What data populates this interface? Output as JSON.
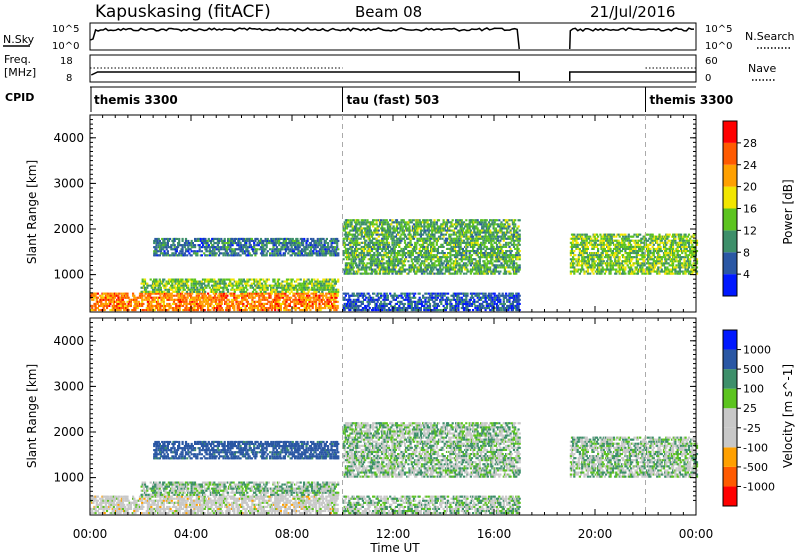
{
  "header": {
    "radar": "Kapuskasing (fitACF)",
    "beam": "Beam 08",
    "date": "21/Jul/2016"
  },
  "noise_panel": {
    "left_label": "N.Sky",
    "left_ticks": [
      "10^5",
      "10^0"
    ],
    "right_ticks": [
      "10^5",
      "10^0"
    ],
    "right_label": "N.Search"
  },
  "freq_panel": {
    "left_label_top": "Freq.",
    "left_label_bottom": "[MHz]",
    "left_ticks": [
      "18",
      "8"
    ],
    "right_ticks": [
      "60",
      "0"
    ],
    "right_label": "Nave"
  },
  "cpid_panel": {
    "label": "CPID",
    "segments": [
      {
        "name": "themis 3300",
        "start_hour": 0,
        "end_hour": 10
      },
      {
        "name": "tau (fast) 503",
        "start_hour": 10,
        "end_hour": 22
      },
      {
        "name": "themis 3300",
        "start_hour": 22,
        "end_hour": 24
      }
    ]
  },
  "x_axis": {
    "ticks": [
      "00:00",
      "04:00",
      "08:00",
      "12:00",
      "16:00",
      "20:00",
      "00:00"
    ],
    "label": "Time UT"
  },
  "power_panel": {
    "ylabel": "Slant Range [km]",
    "yticks": [
      "4000",
      "3000",
      "2000",
      "1000"
    ],
    "colorbar_label": "Power [dB]",
    "colorbar_ticks": [
      "28",
      "24",
      "20",
      "16",
      "12",
      "8",
      "4"
    ]
  },
  "velocity_panel": {
    "ylabel": "Slant Range [km]",
    "yticks": [
      "4000",
      "3000",
      "2000",
      "1000"
    ],
    "colorbar_label": "Velocity [m s^-1]",
    "colorbar_ticks": [
      "1000",
      "500",
      "100",
      "25",
      "-25",
      "-100",
      "-500",
      "-1000"
    ]
  },
  "colors": {
    "power_scale": [
      "#0018ff",
      "#2a57a4",
      "#3d8f6a",
      "#5cc41f",
      "#f2e600",
      "#ffa000",
      "#ff5a00",
      "#ff0000"
    ],
    "velocity_scale": [
      "#ff0000",
      "#ff5a00",
      "#ffa000",
      "#c8c8c8",
      "#c8c8c8",
      "#5cc41f",
      "#3d8f6a",
      "#2a57a4",
      "#0018ff"
    ]
  },
  "chart_data": {
    "type": "heatmap",
    "x_range_hours": [
      0,
      24
    ],
    "y_range_km": [
      180,
      4500
    ],
    "yticks_km": [
      1000,
      2000,
      3000,
      4000
    ],
    "xticks_hours": [
      0,
      4,
      8,
      12,
      16,
      20,
      24
    ],
    "power_range_db": [
      0,
      32
    ],
    "data_gap_hours": [
      17,
      19
    ],
    "echo_bands": [
      {
        "start_hour": 0.0,
        "end_hour": 9.8,
        "range_km": [
          200,
          600
        ],
        "power_db": 24,
        "velocity_ms": -50
      },
      {
        "start_hour": 2.0,
        "end_hour": 9.8,
        "range_km": [
          600,
          900
        ],
        "power_db": 14,
        "velocity_ms": 10
      },
      {
        "start_hour": 2.5,
        "end_hour": 9.8,
        "range_km": [
          1400,
          1800
        ],
        "power_db": 8,
        "velocity_ms": 150
      },
      {
        "start_hour": 10.0,
        "end_hour": 17.0,
        "range_km": [
          200,
          600
        ],
        "power_db": 6,
        "velocity_ms": 0
      },
      {
        "start_hour": 10.0,
        "end_hour": 17.0,
        "range_km": [
          1000,
          2200
        ],
        "power_db": 12,
        "velocity_ms": 0
      },
      {
        "start_hour": 19.0,
        "end_hour": 24.0,
        "range_km": [
          1000,
          1900
        ],
        "power_db": 14,
        "velocity_ms": 0
      }
    ]
  }
}
